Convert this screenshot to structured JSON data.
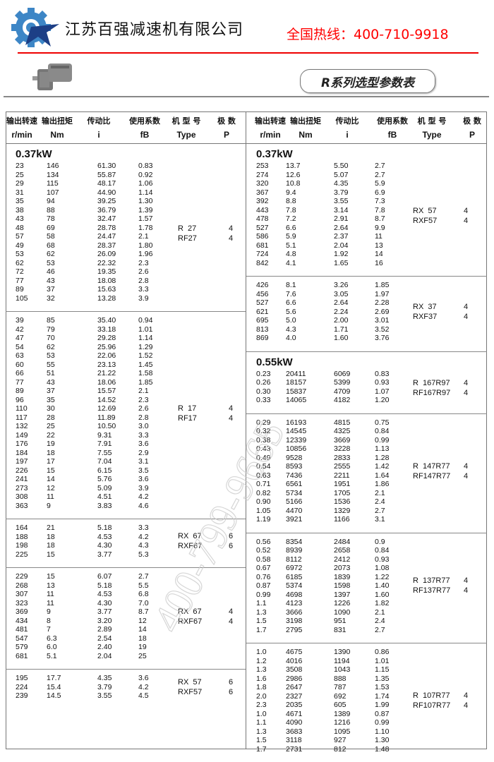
{
  "header": {
    "company_name": "江苏百强减速机有限公司",
    "hotline": "全国热线：400-710-9918",
    "title": "R系列选型参数表",
    "logo_icon": "gear-star-logo",
    "product_image": "gear-motor-icon",
    "brand_color": "#3d86c6",
    "hotline_color": "#ff0000"
  },
  "watermark": "400-799-9665",
  "columns": [
    {
      "cn": "输出转速",
      "unit": "r/min"
    },
    {
      "cn": "输出扭矩",
      "unit": "Nm"
    },
    {
      "cn": "传动比",
      "unit": "i"
    },
    {
      "cn": "使用系数",
      "unit": "fB"
    },
    {
      "cn": "机 型 号",
      "unit": "Type"
    },
    {
      "cn": "极  数",
      "unit": "P"
    }
  ],
  "table": {
    "left": [
      {
        "power": "0.37kW",
        "groups": [
          {
            "type": [
              "R  27",
              "RF27"
            ],
            "poles": [
              "4",
              "4"
            ],
            "rows": [
              [
                "23",
                "146",
                "61.30",
                "0.83"
              ],
              [
                "25",
                "134",
                "55.87",
                "0.92"
              ],
              [
                "29",
                "115",
                "48.17",
                "1.06"
              ],
              [
                "31",
                "107",
                "44.90",
                "1.14"
              ],
              [
                "35",
                "94",
                "39.25",
                "1.30"
              ],
              [
                "38",
                "88",
                "36.79",
                "1.39"
              ],
              [
                "43",
                "78",
                "32.47",
                "1.57"
              ],
              [
                "48",
                "69",
                "28.78",
                "1.78"
              ],
              [
                "57",
                "58",
                "24.47",
                "2.1"
              ],
              [
                "49",
                "68",
                "28.37",
                "1.80"
              ],
              [
                "53",
                "62",
                "26.09",
                "1.96"
              ],
              [
                "62",
                "53",
                "22.32",
                "2.3"
              ],
              [
                "72",
                "46",
                "19.35",
                "2.6"
              ],
              [
                "77",
                "43",
                "18.08",
                "2.8"
              ],
              [
                "89",
                "37",
                "15.63",
                "3.3"
              ],
              [
                "105",
                "32",
                "13.28",
                "3.9"
              ]
            ]
          },
          {
            "type": [
              "R  17",
              "RF17"
            ],
            "poles": [
              "4",
              "4"
            ],
            "rows": [
              [
                "39",
                "85",
                "35.40",
                "0.94"
              ],
              [
                "42",
                "79",
                "33.18",
                "1.01"
              ],
              [
                "47",
                "70",
                "29.28",
                "1.14"
              ],
              [
                "54",
                "62",
                "25.96",
                "1.29"
              ],
              [
                "63",
                "53",
                "22.06",
                "1.52"
              ],
              [
                "60",
                "55",
                "23.13",
                "1.45"
              ],
              [
                "66",
                "51",
                "21.22",
                "1.58"
              ],
              [
                "77",
                "43",
                "18.06",
                "1.85"
              ],
              [
                "89",
                "37",
                "15.57",
                "2.1"
              ],
              [
                "96",
                "35",
                "14.52",
                "2.3"
              ],
              [
                "110",
                "30",
                "12.69",
                "2.6"
              ],
              [
                "117",
                "28",
                "11.89",
                "2.8"
              ],
              [
                "132",
                "25",
                "10.50",
                "3.0"
              ],
              [
                "149",
                "22",
                "9.31",
                "3.3"
              ],
              [
                "176",
                "19",
                "7.91",
                "3.6"
              ],
              [
                "184",
                "18",
                "7.55",
                "2.9"
              ],
              [
                "197",
                "17",
                "7.04",
                "3.1"
              ],
              [
                "226",
                "15",
                "6.15",
                "3.5"
              ],
              [
                "241",
                "14",
                "5.76",
                "3.6"
              ],
              [
                "273",
                "12",
                "5.09",
                "3.9"
              ],
              [
                "308",
                "11",
                "4.51",
                "4.2"
              ],
              [
                "363",
                "9",
                "3.83",
                "4.6"
              ]
            ]
          },
          {
            "type": [
              "RX  67",
              "RXF67"
            ],
            "poles": [
              "6",
              "6"
            ],
            "rows": [
              [
                "164",
                "21",
                "5.18",
                "3.3"
              ],
              [
                "188",
                "18",
                "4.53",
                "4.2"
              ],
              [
                "198",
                "18",
                "4.30",
                "4.3"
              ],
              [
                "225",
                "15",
                "3.77",
                "5.3"
              ]
            ]
          },
          {
            "type": [
              "RX  67",
              "RXF67"
            ],
            "poles": [
              "4",
              "4"
            ],
            "rows": [
              [
                "229",
                "15",
                "6.07",
                "2.7"
              ],
              [
                "268",
                "13",
                "5.18",
                "5.5"
              ],
              [
                "307",
                "11",
                "4.53",
                "6.8"
              ],
              [
                "323",
                "11",
                "4.30",
                "7.0"
              ],
              [
                "369",
                "9",
                "3.77",
                "8.7"
              ],
              [
                "434",
                "8",
                "3.20",
                "12"
              ],
              [
                "481",
                "7",
                "2.89",
                "14"
              ],
              [
                "547",
                "6.3",
                "2.54",
                "18"
              ],
              [
                "579",
                "6.0",
                "2.40",
                "19"
              ],
              [
                "681",
                "5.1",
                "2.04",
                "25"
              ]
            ]
          },
          {
            "type": [
              "RX  57",
              "RXF57"
            ],
            "poles": [
              "6",
              "6"
            ],
            "rows": [
              [
                "195",
                "17.7",
                "4.35",
                "3.6"
              ],
              [
                "224",
                "15.4",
                "3.79",
                "4.2"
              ],
              [
                "239",
                "14.5",
                "3.55",
                "4.5"
              ]
            ]
          }
        ]
      }
    ],
    "right": [
      {
        "power": "0.37kW",
        "groups": [
          {
            "type": [
              "RX  57",
              "RXF57"
            ],
            "poles": [
              "4",
              "4"
            ],
            "rows": [
              [
                "253",
                "13.7",
                "5.50",
                "2.7"
              ],
              [
                "274",
                "12.6",
                "5.07",
                "2.7"
              ],
              [
                "320",
                "10.8",
                "4.35",
                "5.9"
              ],
              [
                "367",
                "9.4",
                "3.79",
                "6.9"
              ],
              [
                "392",
                "8.8",
                "3.55",
                "7.3"
              ],
              [
                "443",
                "7.8",
                "3.14",
                "7.8"
              ],
              [
                "478",
                "7.2",
                "2.91",
                "8.7"
              ],
              [
                "527",
                "6.6",
                "2.64",
                "9.9"
              ],
              [
                "586",
                "5.9",
                "2.37",
                "11"
              ],
              [
                "681",
                "5.1",
                "2.04",
                "13"
              ],
              [
                "724",
                "4.8",
                "1.92",
                "14"
              ],
              [
                "842",
                "4.1",
                "1.65",
                "16"
              ]
            ]
          },
          {
            "type": [
              "RX  37",
              "RXF37"
            ],
            "poles": [
              "4",
              "4"
            ],
            "rows": [
              [
                "426",
                "8.1",
                "3.26",
                "1.85"
              ],
              [
                "456",
                "7.6",
                "3.05",
                "1.97"
              ],
              [
                "527",
                "6.6",
                "2.64",
                "2.28"
              ],
              [
                "621",
                "5.6",
                "2.24",
                "2.69"
              ],
              [
                "695",
                "5.0",
                "2.00",
                "3.01"
              ],
              [
                "813",
                "4.3",
                "1.71",
                "3.52"
              ],
              [
                "869",
                "4.0",
                "1.60",
                "3.76"
              ]
            ]
          }
        ]
      },
      {
        "power": "0.55kW",
        "groups": [
          {
            "type": [
              "R  167R97",
              "RF167R97"
            ],
            "poles": [
              "4",
              "4"
            ],
            "rows": [
              [
                "0.23",
                "20411",
                "6069",
                "0.83"
              ],
              [
                "0.26",
                "18157",
                "5399",
                "0.93"
              ],
              [
                "0.30",
                "15837",
                "4709",
                "1.07"
              ],
              [
                "0.33",
                "14065",
                "4182",
                "1.20"
              ]
            ]
          },
          {
            "type": [
              "R  147R77",
              "RF147R77"
            ],
            "poles": [
              "4",
              "4"
            ],
            "rows": [
              [
                "0.29",
                "16193",
                "4815",
                "0.75"
              ],
              [
                "0.32",
                "14545",
                "4325",
                "0.84"
              ],
              [
                "0.38",
                "12339",
                "3669",
                "0.99"
              ],
              [
                "0.43",
                "10856",
                "3228",
                "1.13"
              ],
              [
                "0.49",
                "9528",
                "2833",
                "1.28"
              ],
              [
                "0.54",
                "8593",
                "2555",
                "1.42"
              ],
              [
                "0.63",
                "7436",
                "2211",
                "1.64"
              ],
              [
                "0.71",
                "6561",
                "1951",
                "1.86"
              ],
              [
                "0.82",
                "5734",
                "1705",
                "2.1"
              ],
              [
                "0.90",
                "5166",
                "1536",
                "2.4"
              ],
              [
                "1.05",
                "4470",
                "1329",
                "2.7"
              ],
              [
                "1.19",
                "3921",
                "1166",
                "3.1"
              ]
            ]
          },
          {
            "type": [
              "R  137R77",
              "RF137R77"
            ],
            "poles": [
              "4",
              "4"
            ],
            "rows": [
              [
                "0.56",
                "8354",
                "2484",
                "0.9"
              ],
              [
                "0.52",
                "8939",
                "2658",
                "0.84"
              ],
              [
                "0.58",
                "8112",
                "2412",
                "0.93"
              ],
              [
                "0.67",
                "6972",
                "2073",
                "1.08"
              ],
              [
                "0.76",
                "6185",
                "1839",
                "1.22"
              ],
              [
                "0.87",
                "5374",
                "1598",
                "1.40"
              ],
              [
                "0.99",
                "4698",
                "1397",
                "1.60"
              ],
              [
                "1.1",
                "4123",
                "1226",
                "1.82"
              ],
              [
                "1.3",
                "3666",
                "1090",
                "2.1"
              ],
              [
                "1.5",
                "3198",
                "951",
                "2.4"
              ],
              [
                "1.7",
                "2795",
                "831",
                "2.7"
              ]
            ]
          },
          {
            "type": [
              "R  107R77",
              "RF107R77"
            ],
            "poles": [
              "4",
              "4"
            ],
            "rows": [
              [
                "1.0",
                "4675",
                "1390",
                "0.86"
              ],
              [
                "1.2",
                "4016",
                "1194",
                "1.01"
              ],
              [
                "1.3",
                "3508",
                "1043",
                "1.15"
              ],
              [
                "1.6",
                "2986",
                "888",
                "1.35"
              ],
              [
                "1.8",
                "2647",
                "787",
                "1.53"
              ],
              [
                "2.0",
                "2327",
                "692",
                "1.74"
              ],
              [
                "2.3",
                "2035",
                "605",
                "1.99"
              ],
              [
                "1.0",
                "4671",
                "1389",
                "0.87"
              ],
              [
                "1.1",
                "4090",
                "1216",
                "0.99"
              ],
              [
                "1.3",
                "3683",
                "1095",
                "1.10"
              ],
              [
                "1.5",
                "3118",
                "927",
                "1.30"
              ],
              [
                "1.7",
                "2731",
                "812",
                "1.48"
              ]
            ]
          }
        ]
      }
    ]
  }
}
